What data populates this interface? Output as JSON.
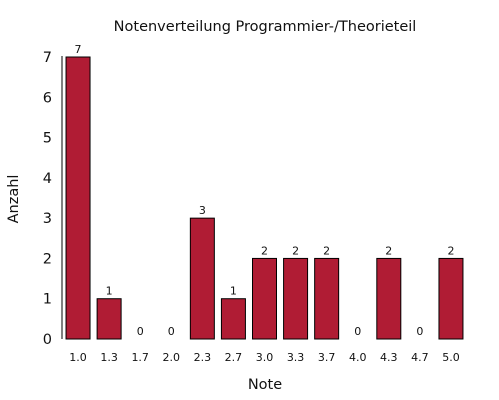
{
  "chart_data": {
    "type": "bar",
    "title": "Notenverteilung Programmier-/Theorieteil",
    "xlabel": "Note",
    "ylabel": "Anzahl",
    "categories": [
      "1.0",
      "1.3",
      "1.7",
      "2.0",
      "2.3",
      "2.7",
      "3.0",
      "3.3",
      "3.7",
      "4.0",
      "4.3",
      "4.7",
      "5.0"
    ],
    "values": [
      7,
      1,
      0,
      0,
      3,
      1,
      2,
      2,
      2,
      0,
      2,
      0,
      2
    ],
    "ylim": [
      0,
      7
    ],
    "yticks": [
      0,
      1,
      2,
      3,
      4,
      5,
      6,
      7
    ],
    "data_labels": true,
    "grid": false,
    "bar_color": "#b01c34"
  }
}
